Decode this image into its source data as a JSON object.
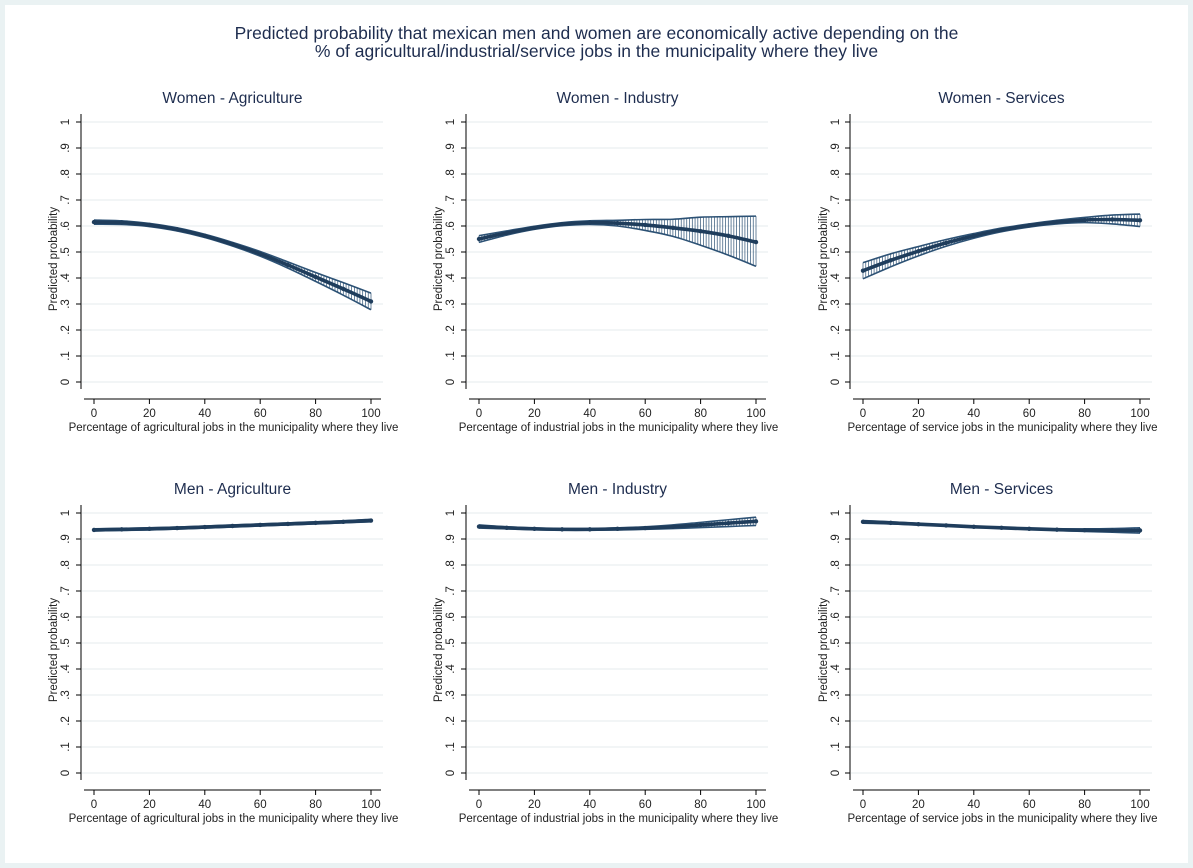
{
  "figure": {
    "title_line1": "Predicted probability that mexican men and women are economically active depending on the",
    "title_line2": "% of agricultural/industrial/service jobs in the municipality where they live"
  },
  "colors": {
    "line": "#1f3d5c",
    "ci": "#2d5275",
    "grid": "#e5ebee",
    "axis": "#000000",
    "title": "#1e2d4f",
    "background": "#eaf2f3"
  },
  "chart_data": [
    {
      "type": "line",
      "title": "Women - Agriculture",
      "xlabel": "Percentage of agricultural jobs in the municipality where they live",
      "ylabel": "Predicted probability",
      "xlim": [
        0,
        100
      ],
      "ylim": [
        0,
        1
      ],
      "xticks": [
        0,
        20,
        40,
        60,
        80,
        100
      ],
      "yticks": [
        "0",
        ".1",
        ".2",
        ".3",
        ".4",
        ".5",
        ".6",
        ".7",
        ".8",
        ".9",
        "1"
      ],
      "grid": true,
      "x": [
        0,
        10,
        20,
        30,
        40,
        50,
        60,
        70,
        80,
        90,
        100
      ],
      "y": [
        0.615,
        0.613,
        0.604,
        0.587,
        0.562,
        0.53,
        0.493,
        0.45,
        0.404,
        0.358,
        0.31
      ],
      "ci_low": [
        0.607,
        0.606,
        0.598,
        0.581,
        0.556,
        0.523,
        0.484,
        0.438,
        0.387,
        0.334,
        0.278
      ],
      "ci_high": [
        0.623,
        0.62,
        0.61,
        0.593,
        0.568,
        0.537,
        0.502,
        0.462,
        0.421,
        0.382,
        0.342
      ]
    },
    {
      "type": "line",
      "title": "Women - Industry",
      "xlabel": "Percentage of industrial jobs in the municipality where they live",
      "ylabel": "Predicted probability",
      "xlim": [
        0,
        100
      ],
      "ylim": [
        0,
        1
      ],
      "xticks": [
        0,
        20,
        40,
        60,
        80,
        100
      ],
      "yticks": [
        "0",
        ".1",
        ".2",
        ".3",
        ".4",
        ".5",
        ".6",
        ".7",
        ".8",
        ".9",
        "1"
      ],
      "grid": true,
      "x": [
        0,
        10,
        20,
        30,
        40,
        50,
        60,
        70,
        80,
        90,
        100
      ],
      "y": [
        0.55,
        0.573,
        0.593,
        0.607,
        0.613,
        0.611,
        0.604,
        0.593,
        0.58,
        0.562,
        0.538
      ],
      "ci_low": [
        0.537,
        0.565,
        0.587,
        0.601,
        0.606,
        0.6,
        0.583,
        0.56,
        0.526,
        0.488,
        0.445
      ],
      "ci_high": [
        0.563,
        0.581,
        0.599,
        0.613,
        0.62,
        0.622,
        0.625,
        0.626,
        0.634,
        0.636,
        0.638
      ]
    },
    {
      "type": "line",
      "title": "Women - Services",
      "xlabel": "Percentage of service jobs in the municipality where they live",
      "ylabel": "Predicted probability",
      "xlim": [
        0,
        100
      ],
      "ylim": [
        0,
        1
      ],
      "xticks": [
        0,
        20,
        40,
        60,
        80,
        100
      ],
      "yticks": [
        "0",
        ".1",
        ".2",
        ".3",
        ".4",
        ".5",
        ".6",
        ".7",
        ".8",
        ".9",
        "1"
      ],
      "grid": true,
      "x": [
        0,
        10,
        20,
        30,
        40,
        50,
        60,
        70,
        80,
        90,
        100
      ],
      "y": [
        0.428,
        0.468,
        0.503,
        0.535,
        0.562,
        0.585,
        0.602,
        0.615,
        0.623,
        0.625,
        0.622
      ],
      "ci_low": [
        0.397,
        0.443,
        0.485,
        0.522,
        0.553,
        0.578,
        0.596,
        0.608,
        0.613,
        0.608,
        0.598
      ],
      "ci_high": [
        0.459,
        0.493,
        0.521,
        0.548,
        0.571,
        0.592,
        0.608,
        0.622,
        0.633,
        0.642,
        0.646
      ]
    },
    {
      "type": "line",
      "title": "Men - Agriculture",
      "xlabel": "Percentage of agricultural jobs in the municipality where they live",
      "ylabel": "Predicted probability",
      "xlim": [
        0,
        100
      ],
      "ylim": [
        0,
        1
      ],
      "xticks": [
        0,
        20,
        40,
        60,
        80,
        100
      ],
      "yticks": [
        "0",
        ".1",
        ".2",
        ".3",
        ".4",
        ".5",
        ".6",
        ".7",
        ".8",
        ".9",
        "1"
      ],
      "grid": true,
      "x": [
        0,
        10,
        20,
        30,
        40,
        50,
        60,
        70,
        80,
        90,
        100
      ],
      "y": [
        0.935,
        0.937,
        0.939,
        0.942,
        0.946,
        0.95,
        0.954,
        0.958,
        0.962,
        0.966,
        0.971
      ],
      "ci_low": [
        0.931,
        0.933,
        0.935,
        0.938,
        0.942,
        0.946,
        0.95,
        0.954,
        0.958,
        0.962,
        0.966
      ],
      "ci_high": [
        0.939,
        0.941,
        0.943,
        0.946,
        0.95,
        0.954,
        0.958,
        0.962,
        0.966,
        0.97,
        0.976
      ]
    },
    {
      "type": "line",
      "title": "Men - Industry",
      "xlabel": "Percentage of industrial jobs in the municipality where they live",
      "ylabel": "Predicted probability",
      "xlim": [
        0,
        100
      ],
      "ylim": [
        0,
        1
      ],
      "xticks": [
        0,
        20,
        40,
        60,
        80,
        100
      ],
      "yticks": [
        "0",
        ".1",
        ".2",
        ".3",
        ".4",
        ".5",
        ".6",
        ".7",
        ".8",
        ".9",
        "1"
      ],
      "grid": true,
      "x": [
        0,
        10,
        20,
        30,
        40,
        50,
        60,
        70,
        80,
        90,
        100
      ],
      "y": [
        0.948,
        0.943,
        0.939,
        0.937,
        0.937,
        0.939,
        0.942,
        0.947,
        0.954,
        0.961,
        0.968
      ],
      "ci_low": [
        0.942,
        0.939,
        0.936,
        0.934,
        0.934,
        0.935,
        0.937,
        0.94,
        0.944,
        0.948,
        0.952
      ],
      "ci_high": [
        0.954,
        0.947,
        0.942,
        0.94,
        0.94,
        0.943,
        0.947,
        0.954,
        0.964,
        0.974,
        0.984
      ]
    },
    {
      "type": "line",
      "title": "Men - Services",
      "xlabel": "Percentage of service jobs in the municipality where they live",
      "ylabel": "Predicted probability",
      "xlim": [
        0,
        100
      ],
      "ylim": [
        0,
        1
      ],
      "xticks": [
        0,
        20,
        40,
        60,
        80,
        100
      ],
      "yticks": [
        "0",
        ".1",
        ".2",
        ".3",
        ".4",
        ".5",
        ".6",
        ".7",
        ".8",
        ".9",
        "1"
      ],
      "grid": true,
      "x": [
        0,
        10,
        20,
        30,
        40,
        50,
        60,
        70,
        80,
        90,
        100
      ],
      "y": [
        0.966,
        0.962,
        0.957,
        0.952,
        0.947,
        0.943,
        0.939,
        0.936,
        0.934,
        0.933,
        0.933
      ],
      "ci_low": [
        0.961,
        0.958,
        0.954,
        0.95,
        0.945,
        0.941,
        0.937,
        0.933,
        0.929,
        0.926,
        0.923
      ],
      "ci_high": [
        0.971,
        0.966,
        0.96,
        0.954,
        0.949,
        0.945,
        0.941,
        0.939,
        0.939,
        0.94,
        0.943
      ]
    }
  ]
}
